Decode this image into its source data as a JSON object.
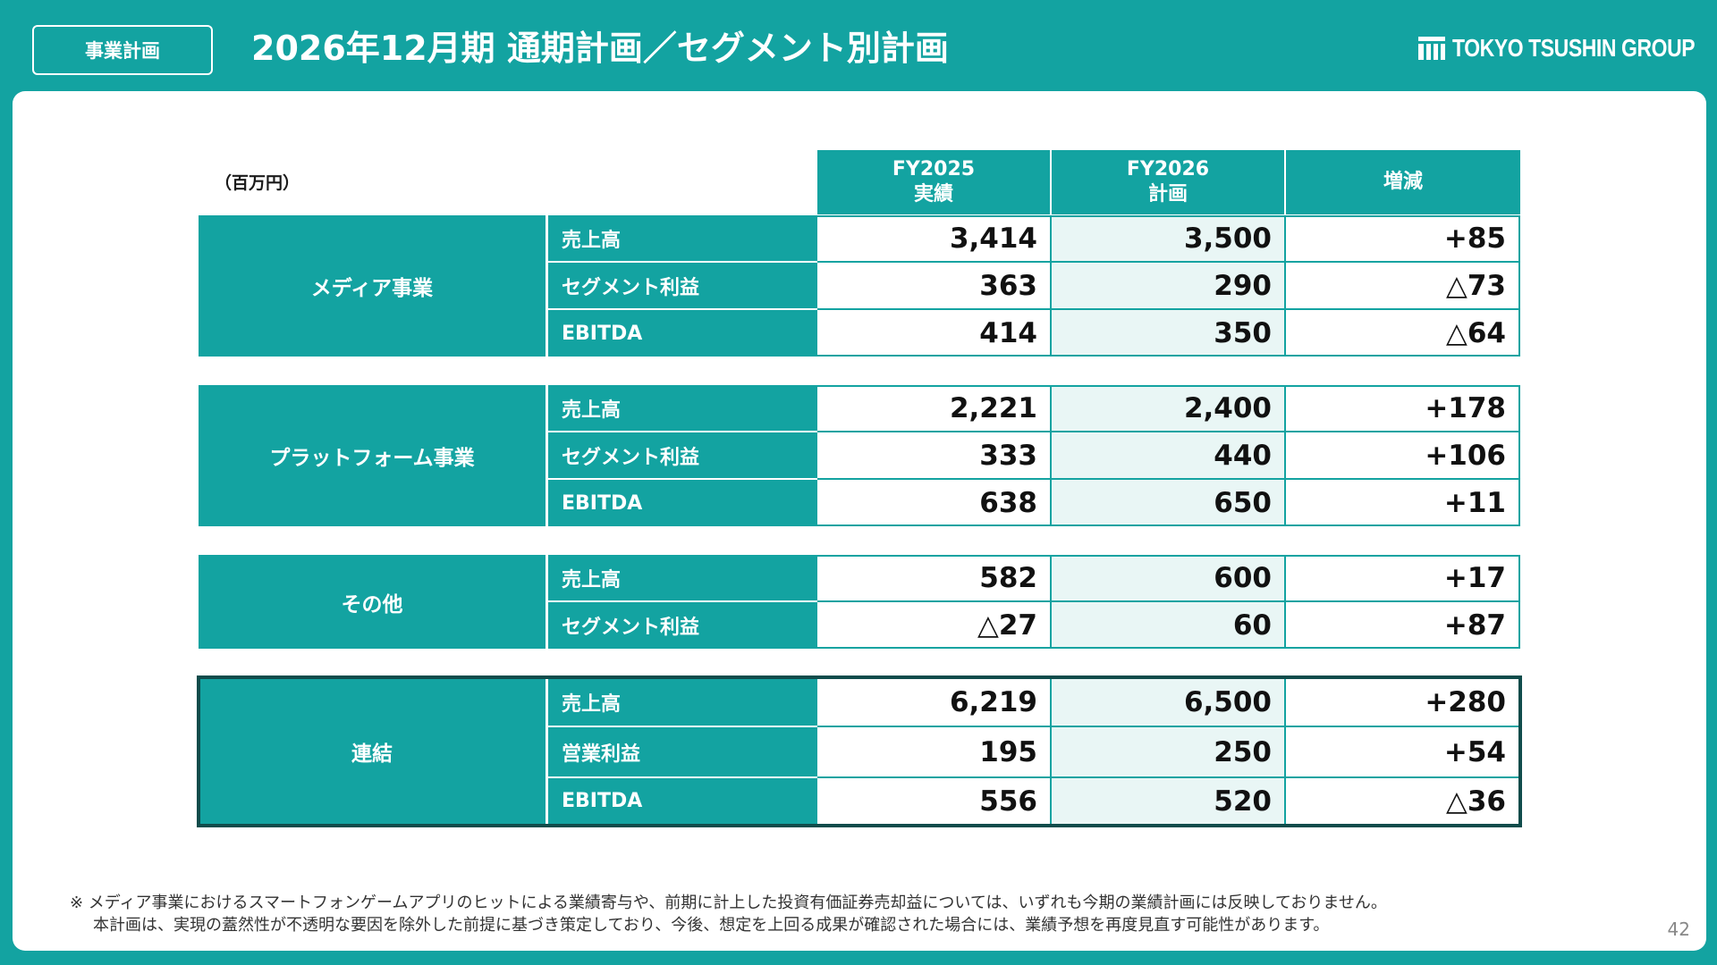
{
  "header": {
    "tag": "事業計画",
    "title": "2026年12月期 通期計画／セグメント別計画",
    "logo_text": "TOKYO TSUSHIN GROUP"
  },
  "table": {
    "unit": "（百万円）",
    "columns": [
      {
        "line1": "FY2025",
        "line2": "実績"
      },
      {
        "line1": "FY2026",
        "line2": "計画"
      },
      {
        "line1": "増減",
        "line2": ""
      }
    ],
    "segments": [
      {
        "name": "メディア事業",
        "rows": [
          {
            "metric": "売上高",
            "fy2025": "3,414",
            "fy2026": "3,500",
            "change": "+85"
          },
          {
            "metric": "セグメント利益",
            "fy2025": "363",
            "fy2026": "290",
            "change": "△73"
          },
          {
            "metric": "EBITDA",
            "fy2025": "414",
            "fy2026": "350",
            "change": "△64"
          }
        ]
      },
      {
        "name": "プラットフォーム事業",
        "rows": [
          {
            "metric": "売上高",
            "fy2025": "2,221",
            "fy2026": "2,400",
            "change": "+178"
          },
          {
            "metric": "セグメント利益",
            "fy2025": "333",
            "fy2026": "440",
            "change": "+106"
          },
          {
            "metric": "EBITDA",
            "fy2025": "638",
            "fy2026": "650",
            "change": "+11"
          }
        ]
      },
      {
        "name": "その他",
        "rows": [
          {
            "metric": "売上高",
            "fy2025": "582",
            "fy2026": "600",
            "change": "+17"
          },
          {
            "metric": "セグメント利益",
            "fy2025": "△27",
            "fy2026": "60",
            "change": "+87"
          }
        ]
      },
      {
        "name": "連結",
        "rows": [
          {
            "metric": "売上高",
            "fy2025": "6,219",
            "fy2026": "6,500",
            "change": "+280"
          },
          {
            "metric": "営業利益",
            "fy2025": "195",
            "fy2026": "250",
            "change": "+54"
          },
          {
            "metric": "EBITDA",
            "fy2025": "556",
            "fy2026": "520",
            "change": "△36"
          }
        ]
      }
    ]
  },
  "notes": {
    "line1": "※ メディア事業におけるスマートフォンゲームアプリのヒットによる業績寄与や、前期に計上した投資有価証券売却益については、いずれも今期の業績計画には反映しておりません。",
    "line2": "本計画は、実現の蓋然性が不透明な要因を除外した前提に基づき策定しており、今後、想定を上回る成果が確認された場合には、業績予想を再度見直す可能性があります。"
  },
  "page_number": "42",
  "colors": {
    "accent": "#13a3a1",
    "consolidated_border": "#0f4c4b",
    "plan_column_bg": "#e9f6f5"
  }
}
